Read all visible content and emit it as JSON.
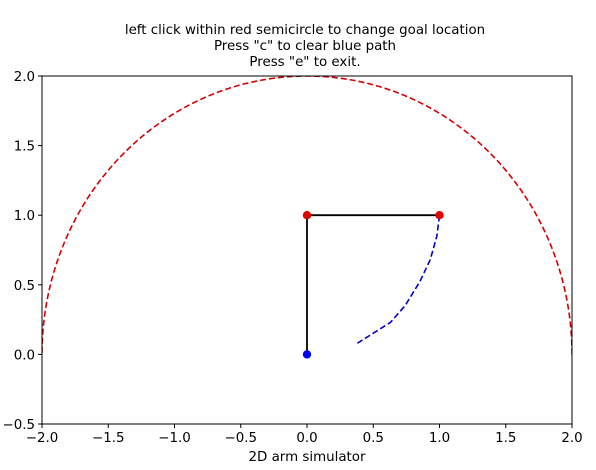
{
  "window": {
    "title_lines": [
      "left click within red semicircle to change goal location",
      "Press \"c\" to clear blue path",
      "Press \"e\" to exit."
    ],
    "xlabel": "2D arm simulator"
  },
  "chart_data": {
    "type": "line",
    "title": "left click within red semicircle to change goal location\nPress \"c\" to clear blue path\nPress \"e\" to exit.",
    "xlabel": "2D arm simulator",
    "ylabel": "",
    "xlim": [
      -2.0,
      2.0
    ],
    "ylim": [
      -0.5,
      2.0
    ],
    "xticks": [
      -2.0,
      -1.5,
      -1.0,
      -0.5,
      0.0,
      0.5,
      1.0,
      1.5,
      2.0
    ],
    "yticks": [
      -0.5,
      0.0,
      0.5,
      1.0,
      1.5,
      2.0
    ],
    "xtick_labels": [
      "−2.0",
      "−1.5",
      "−1.0",
      "−0.5",
      "0.0",
      "0.5",
      "1.0",
      "1.5",
      "2.0"
    ],
    "ytick_labels": [
      "−0.5",
      "0.0",
      "0.5",
      "1.0",
      "1.5",
      "2.0"
    ],
    "grid": false,
    "colors": {
      "semicircle": "#d40000",
      "arm": "#000000",
      "joint": "#e00000",
      "base": "#0000ee",
      "path": "#0000cc"
    },
    "workspace_semicircle": {
      "center": [
        0.0,
        0.0
      ],
      "radius": 2.0
    },
    "arm_links": [
      [
        0.0,
        0.0
      ],
      [
        0.0,
        1.0
      ],
      [
        1.0,
        1.0
      ]
    ],
    "base_point": [
      0.0,
      0.0
    ],
    "joint_points": [
      [
        0.0,
        1.0
      ],
      [
        1.0,
        1.0
      ]
    ],
    "path": [
      [
        0.38,
        0.08
      ],
      [
        0.63,
        0.23
      ],
      [
        0.74,
        0.35
      ],
      [
        0.85,
        0.52
      ],
      [
        0.93,
        0.68
      ],
      [
        0.98,
        0.85
      ],
      [
        1.0,
        1.0
      ]
    ]
  }
}
